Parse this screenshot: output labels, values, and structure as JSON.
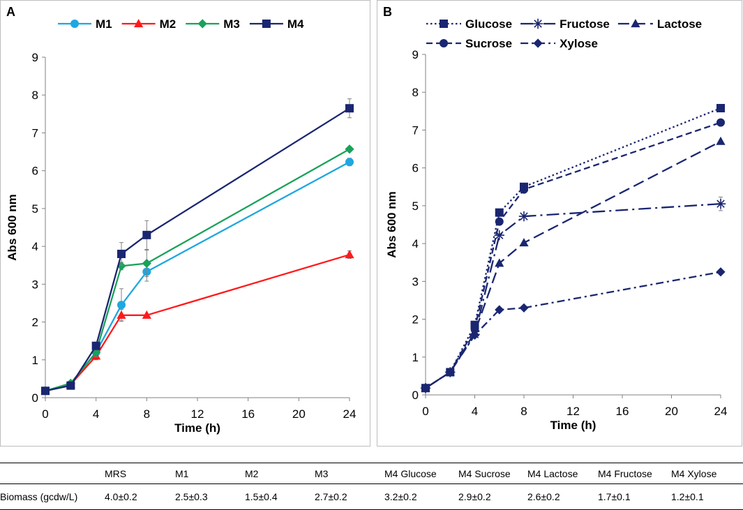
{
  "chart_data": [
    {
      "panel": "A",
      "type": "line",
      "xlabel": "Time (h)",
      "ylabel": "Abs 600 nm",
      "xlim": [
        0,
        24
      ],
      "ylim": [
        0,
        9
      ],
      "xticks": [
        0,
        4,
        8,
        12,
        16,
        20,
        24
      ],
      "yticks": [
        0,
        1,
        2,
        3,
        4,
        5,
        6,
        7,
        8,
        9
      ],
      "legend_position": "top",
      "series": [
        {
          "name": "M1",
          "color": "#1FA7E0",
          "marker": "circle",
          "dash": "solid",
          "x": [
            0,
            2,
            4,
            6,
            8,
            24
          ],
          "y": [
            0.18,
            0.35,
            1.2,
            2.45,
            3.33,
            6.23
          ],
          "err": [
            0.05,
            0.05,
            0.1,
            0.43,
            0.25,
            0.1
          ]
        },
        {
          "name": "M2",
          "color": "#FF1A1A",
          "marker": "triangle",
          "dash": "solid",
          "x": [
            0,
            2,
            4,
            6,
            8,
            24
          ],
          "y": [
            0.18,
            0.35,
            1.1,
            2.18,
            2.18,
            3.78
          ],
          "err": [
            0.03,
            0.03,
            0.1,
            0.15,
            0.05,
            0.1
          ]
        },
        {
          "name": "M3",
          "color": "#19A25A",
          "marker": "diamond",
          "dash": "solid",
          "x": [
            0,
            2,
            4,
            6,
            8,
            24
          ],
          "y": [
            0.18,
            0.38,
            1.2,
            3.48,
            3.55,
            6.57
          ],
          "err": [
            0.03,
            0.05,
            0.12,
            0.1,
            0.35,
            0.05
          ]
        },
        {
          "name": "M4",
          "color": "#1A2670",
          "marker": "square",
          "dash": "solid",
          "x": [
            0,
            2,
            4,
            6,
            8,
            24
          ],
          "y": [
            0.18,
            0.32,
            1.37,
            3.8,
            4.3,
            7.65
          ],
          "err": [
            0.03,
            0.05,
            0.1,
            0.3,
            0.38,
            0.25
          ]
        }
      ]
    },
    {
      "panel": "B",
      "type": "line",
      "xlabel": "Time (h)",
      "ylabel": "Abs 600 nm",
      "xlim": [
        0,
        24
      ],
      "ylim": [
        0,
        9
      ],
      "xticks": [
        0,
        4,
        8,
        12,
        16,
        20,
        24
      ],
      "yticks": [
        0,
        1,
        2,
        3,
        4,
        5,
        6,
        7,
        8,
        9
      ],
      "legend_position": "top",
      "series": [
        {
          "name": "Glucose",
          "color": "#1A2670",
          "marker": "square",
          "dash": "dot",
          "x": [
            0,
            2,
            4,
            6,
            8,
            24
          ],
          "y": [
            0.18,
            0.6,
            1.85,
            4.82,
            5.5,
            7.58
          ],
          "err": [
            0,
            0,
            0,
            0,
            0,
            0
          ]
        },
        {
          "name": "Fructose",
          "color": "#1A2670",
          "marker": "asterisk",
          "dash": "longdashdot",
          "x": [
            0,
            2,
            4,
            6,
            8,
            24
          ],
          "y": [
            0.18,
            0.6,
            1.6,
            4.22,
            4.72,
            5.05
          ],
          "err": [
            0,
            0,
            0,
            0,
            0,
            0.18
          ]
        },
        {
          "name": "Lactose",
          "color": "#1A2670",
          "marker": "triangle",
          "dash": "longdash",
          "x": [
            0,
            2,
            4,
            6,
            8,
            24
          ],
          "y": [
            0.18,
            0.6,
            1.65,
            3.48,
            4.02,
            6.7
          ],
          "err": [
            0,
            0,
            0,
            0,
            0,
            0
          ]
        },
        {
          "name": "Sucrose",
          "color": "#1A2670",
          "marker": "circle",
          "dash": "dash",
          "x": [
            0,
            2,
            4,
            6,
            8,
            24
          ],
          "y": [
            0.18,
            0.6,
            1.75,
            4.58,
            5.43,
            7.2
          ],
          "err": [
            0,
            0,
            0,
            0,
            0,
            0
          ]
        },
        {
          "name": "Xylose",
          "color": "#1A2670",
          "marker": "diamond",
          "dash": "dashdot",
          "x": [
            0,
            2,
            4,
            6,
            8,
            24
          ],
          "y": [
            0.18,
            0.6,
            1.58,
            2.25,
            2.3,
            3.25
          ],
          "err": [
            0,
            0,
            0,
            0,
            0,
            0
          ]
        }
      ]
    }
  ],
  "table": {
    "columns": [
      "",
      "MRS",
      "M1",
      "M2",
      "M3",
      "M4 Glucose",
      "M4 Sucrose",
      "M4 Lactose",
      "M4 Fructose",
      "M4 Xylose"
    ],
    "row": {
      "label": "Biomass (gcdw/L)",
      "values": [
        "4.0±0.2",
        "2.5±0.3",
        "1.5±0.4",
        "2.7±0.2",
        "3.2±0.2",
        "2.9±0.2",
        "2.6±0.2",
        "1.7±0.1",
        "1.2±0.1"
      ]
    }
  }
}
